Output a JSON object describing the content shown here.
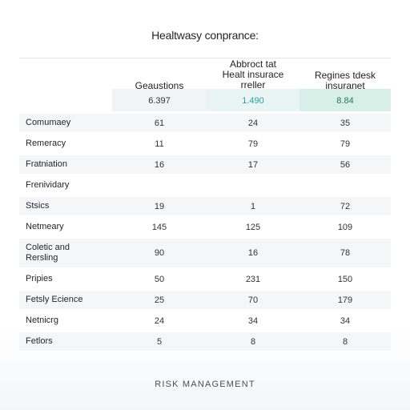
{
  "title": "Healtwasy conprance:",
  "columns": [
    {
      "header": "Geaustions",
      "summary": "6.397"
    },
    {
      "header": "Abbroct tat\nHealt insurace\nrreller",
      "summary": "1.490"
    },
    {
      "header": "Regines tdesk\ninsuranet",
      "summary": "8.84"
    }
  ],
  "rows": [
    {
      "label": "Comumaey",
      "values": [
        "61",
        "24",
        "35"
      ]
    },
    {
      "label": "Remeracy",
      "values": [
        "11",
        "79",
        "79"
      ]
    },
    {
      "label": "Fratniation",
      "values": [
        "16",
        "17",
        "56"
      ]
    },
    {
      "label": "Frenividary",
      "values": [
        "",
        "",
        ""
      ]
    },
    {
      "label": "Stsics",
      "values": [
        "19",
        "1",
        "72"
      ]
    },
    {
      "label": "Netmeary",
      "values": [
        "145",
        "125",
        "109"
      ]
    },
    {
      "label": "Coletic and\nRersling",
      "values": [
        "90",
        "16",
        "78"
      ]
    },
    {
      "label": "Pripies",
      "values": [
        "50",
        "231",
        "150"
      ]
    },
    {
      "label": "Fetsly Ecience",
      "values": [
        "25",
        "70",
        "179"
      ]
    },
    {
      "label": "Netnicrg",
      "values": [
        "24",
        "34",
        "34"
      ]
    },
    {
      "label": "Fetlors",
      "values": [
        "5",
        "8",
        "8"
      ]
    }
  ],
  "footer": "RISK MANAGEMENT",
  "colors": {
    "band_mid": "#e8f5f4",
    "band_right": "#d7efe6",
    "accent_mid": "#2e9e96",
    "accent_right": "#1f7a57"
  }
}
